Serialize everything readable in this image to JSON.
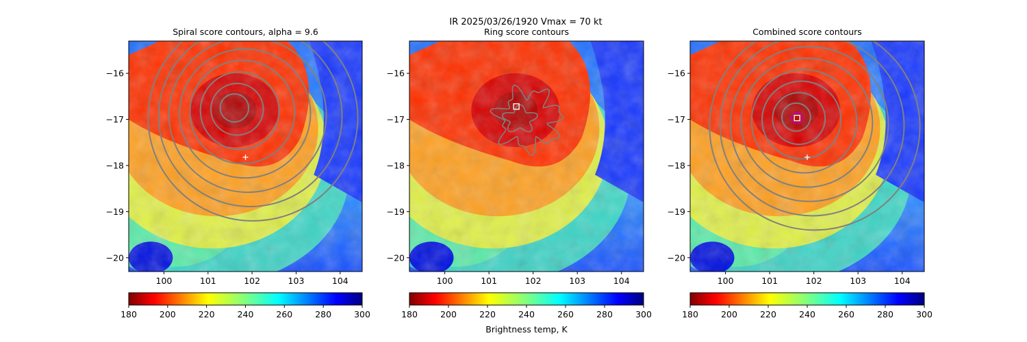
{
  "figure": {
    "suptitle_line1": "IR  2025/03/26/1920    Vmax = 70 kt",
    "colorbar_label": "Brightness temp, K"
  },
  "chart_data": [
    {
      "type": "heatmap",
      "title": "Spiral score contours, alpha =  9.6",
      "xlim": [
        99.2,
        104.5
      ],
      "ylim": [
        -20.3,
        -15.3
      ],
      "xticks": [
        100,
        101,
        102,
        103,
        104
      ],
      "yticks": [
        -16,
        -17,
        -18,
        -19,
        -20
      ],
      "colorbar": {
        "range": [
          180,
          300
        ],
        "ticks": [
          180,
          200,
          220,
          240,
          260,
          280,
          300
        ],
        "colormap": "jet_r"
      },
      "markers": [
        {
          "symbol": "plus",
          "x": 101.85,
          "y": -17.82,
          "color": "#ffffff"
        }
      ],
      "contour_center": [
        101.6,
        -16.75
      ]
    },
    {
      "type": "heatmap",
      "title": "Ring score contours",
      "xlim": [
        99.2,
        104.5
      ],
      "ylim": [
        -20.3,
        -15.3
      ],
      "xticks": [
        100,
        101,
        102,
        103,
        104
      ],
      "yticks": [
        -16,
        -17,
        -18,
        -19,
        -20
      ],
      "colorbar": {
        "range": [
          180,
          300
        ],
        "ticks": [
          180,
          200,
          220,
          240,
          260,
          280,
          300
        ],
        "colormap": "jet_r"
      },
      "markers": [
        {
          "symbol": "square",
          "x": 101.62,
          "y": -16.72,
          "color": "#ffffff"
        }
      ],
      "contour_center": [
        101.9,
        -17.0
      ]
    },
    {
      "type": "heatmap",
      "title": "Combined score contours",
      "xlim": [
        99.2,
        104.5
      ],
      "ylim": [
        -20.3,
        -15.3
      ],
      "xticks": [
        100,
        101,
        102,
        103,
        104
      ],
      "yticks": [
        -16,
        -17,
        -18,
        -19,
        -20
      ],
      "colorbar": {
        "range": [
          180,
          300
        ],
        "ticks": [
          180,
          200,
          220,
          240,
          260,
          280,
          300
        ],
        "colormap": "jet_r"
      },
      "markers": [
        {
          "symbol": "plus",
          "x": 101.85,
          "y": -17.82,
          "color": "#ffffff"
        },
        {
          "symbol": "circle",
          "x": 101.62,
          "y": -16.97,
          "color": "#c000c0"
        },
        {
          "symbol": "square",
          "x": 101.62,
          "y": -16.97,
          "color": "#ffffff"
        }
      ],
      "contour_center": [
        101.6,
        -16.95
      ]
    }
  ]
}
